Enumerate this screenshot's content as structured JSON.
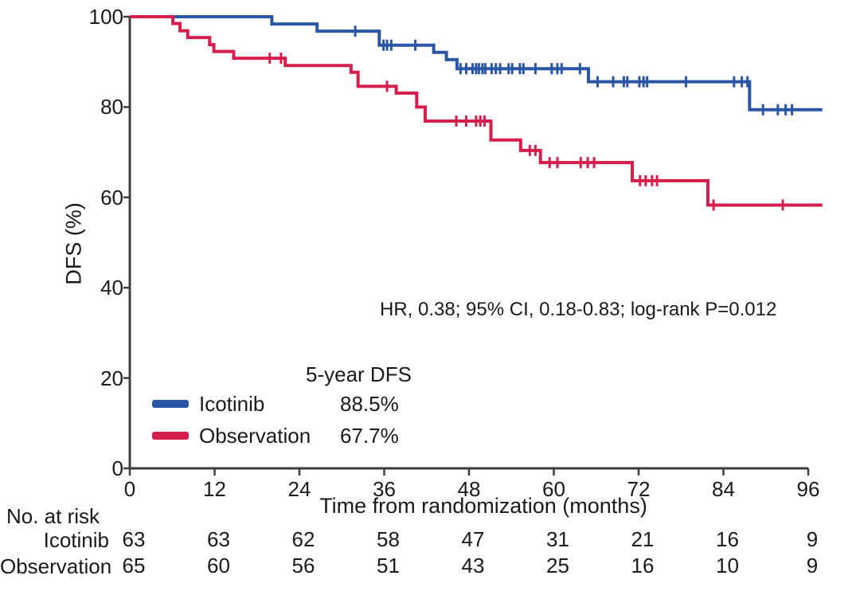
{
  "chart_data": {
    "type": "line",
    "subtype": "kaplan-meier-step",
    "title": "",
    "xlabel": "Time from randomization (months)",
    "ylabel": "DFS (%)",
    "xlim": [
      0,
      96
    ],
    "ylim": [
      0,
      100
    ],
    "x_ticks": [
      0,
      12,
      24,
      36,
      48,
      60,
      72,
      84,
      96
    ],
    "y_ticks": [
      0,
      20,
      40,
      60,
      80,
      100
    ],
    "grid": false,
    "annotation": "HR, 0.38; 95% CI, 0.18-0.83; log-rank P=0.012",
    "colors": {
      "icotinib": "#2a57a5",
      "observation": "#d41e4b",
      "axis": "#3d3d3d",
      "text": "#1a1a1a"
    },
    "legend": {
      "header": "5-year DFS",
      "position": "lower-left-inside",
      "items": [
        {
          "name": "Icotinib",
          "value": "88.5%",
          "color": "#2a57a5"
        },
        {
          "name": "Observation",
          "value": "67.7%",
          "color": "#d41e4b"
        }
      ]
    },
    "series": [
      {
        "name": "Icotinib",
        "color": "#2a57a5",
        "end_month": 98,
        "steps": [
          [
            0,
            100
          ],
          [
            20.1,
            98.4
          ],
          [
            26.5,
            96.8
          ],
          [
            35.3,
            93.7
          ],
          [
            43.0,
            92.1
          ],
          [
            44.8,
            90.5
          ],
          [
            46.3,
            88.5
          ],
          [
            64.9,
            85.6
          ],
          [
            87.7,
            79.4
          ]
        ],
        "censors": [
          [
            31.9,
            96.8
          ],
          [
            35.9,
            93.7
          ],
          [
            36.4,
            93.7
          ],
          [
            37.0,
            93.7
          ],
          [
            40.4,
            93.7
          ],
          [
            46.8,
            88.5
          ],
          [
            47.6,
            88.5
          ],
          [
            48.5,
            88.5
          ],
          [
            49.0,
            88.5
          ],
          [
            49.4,
            88.5
          ],
          [
            49.9,
            88.5
          ],
          [
            50.3,
            88.5
          ],
          [
            51.2,
            88.5
          ],
          [
            51.8,
            88.5
          ],
          [
            52.4,
            88.5
          ],
          [
            53.6,
            88.5
          ],
          [
            54.1,
            88.5
          ],
          [
            55.2,
            88.5
          ],
          [
            55.7,
            88.5
          ],
          [
            57.4,
            88.5
          ],
          [
            59.7,
            88.5
          ],
          [
            60.5,
            88.5
          ],
          [
            61.1,
            88.5
          ],
          [
            63.7,
            88.5
          ],
          [
            66.2,
            85.6
          ],
          [
            68.4,
            85.6
          ],
          [
            69.9,
            85.6
          ],
          [
            70.4,
            85.6
          ],
          [
            72.1,
            85.6
          ],
          [
            72.7,
            85.6
          ],
          [
            73.2,
            85.6
          ],
          [
            78.7,
            85.6
          ],
          [
            85.5,
            85.6
          ],
          [
            86.6,
            85.6
          ],
          [
            87.4,
            85.6
          ],
          [
            89.6,
            79.4
          ],
          [
            91.7,
            79.4
          ],
          [
            92.8,
            79.4
          ],
          [
            93.7,
            79.4
          ]
        ]
      },
      {
        "name": "Observation",
        "color": "#d41e4b",
        "end_month": 98,
        "steps": [
          [
            0,
            100
          ],
          [
            6.1,
            98.5
          ],
          [
            7.1,
            96.9
          ],
          [
            8.2,
            95.4
          ],
          [
            11.3,
            93.8
          ],
          [
            11.9,
            92.3
          ],
          [
            14.7,
            90.8
          ],
          [
            22.0,
            89.2
          ],
          [
            31.3,
            87.7
          ],
          [
            32.3,
            84.6
          ],
          [
            37.7,
            83.1
          ],
          [
            40.6,
            80.0
          ],
          [
            41.8,
            76.9
          ],
          [
            51.1,
            72.7
          ],
          [
            55.3,
            70.4
          ],
          [
            58.1,
            67.7
          ],
          [
            71.1,
            63.7
          ],
          [
            81.8,
            58.3
          ]
        ],
        "censors": [
          [
            19.8,
            90.8
          ],
          [
            21.4,
            90.8
          ],
          [
            36.4,
            84.6
          ],
          [
            46.2,
            76.9
          ],
          [
            47.6,
            76.9
          ],
          [
            49.0,
            76.9
          ],
          [
            49.6,
            76.9
          ],
          [
            50.2,
            76.9
          ],
          [
            56.6,
            70.4
          ],
          [
            57.4,
            70.4
          ],
          [
            59.4,
            67.7
          ],
          [
            60.5,
            67.7
          ],
          [
            63.8,
            67.7
          ],
          [
            64.8,
            67.7
          ],
          [
            65.7,
            67.7
          ],
          [
            72.2,
            63.7
          ],
          [
            73.0,
            63.7
          ],
          [
            73.9,
            63.7
          ],
          [
            74.6,
            63.7
          ],
          [
            82.6,
            58.3
          ],
          [
            92.4,
            58.3
          ]
        ]
      }
    ],
    "at_risk": {
      "header": "No. at risk",
      "time_points": [
        0,
        12,
        24,
        36,
        48,
        60,
        72,
        84,
        96
      ],
      "rows": [
        {
          "label": "Icotinib",
          "values": [
            "63",
            "63",
            "62",
            "58",
            "47",
            "31",
            "21",
            "16",
            "9"
          ]
        },
        {
          "label": "Observation",
          "values": [
            "65",
            "60",
            "56",
            "51",
            "43",
            "25",
            "16",
            "10",
            "9"
          ]
        }
      ]
    }
  }
}
